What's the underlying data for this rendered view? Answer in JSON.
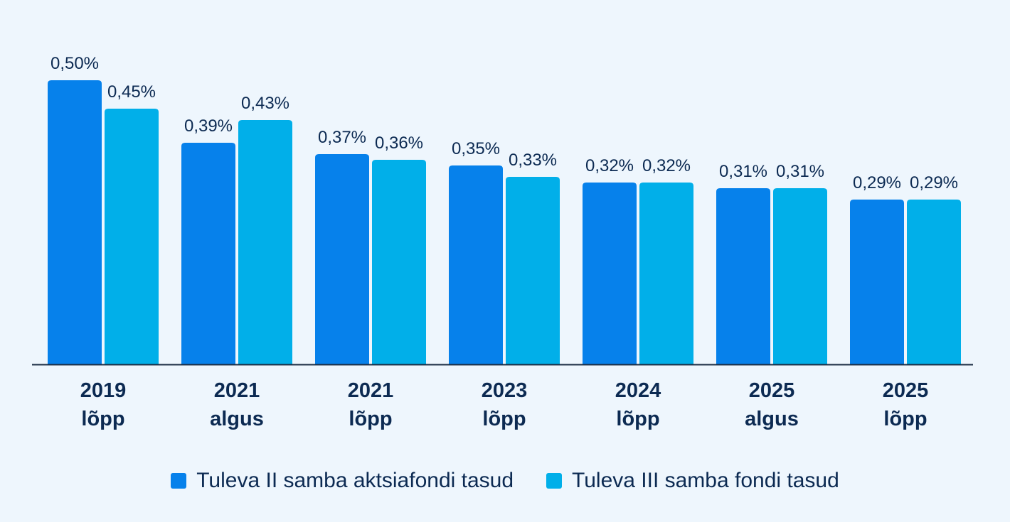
{
  "chart_data": {
    "type": "bar",
    "title": "",
    "xlabel": "",
    "ylabel": "",
    "ylim": [
      0,
      0.5
    ],
    "categories": [
      [
        "2019",
        "lõpp"
      ],
      [
        "2021",
        "algus"
      ],
      [
        "2021",
        "lõpp"
      ],
      [
        "2023",
        "lõpp"
      ],
      [
        "2024",
        "lõpp"
      ],
      [
        "2025",
        "algus"
      ],
      [
        "2025",
        "lõpp"
      ]
    ],
    "series": [
      {
        "name": "Tuleva II samba aktsiafondi tasud",
        "color": "#0681eb",
        "values": [
          0.5,
          0.39,
          0.37,
          0.35,
          0.32,
          0.31,
          0.29
        ],
        "labels": [
          "0,50%",
          "0,39%",
          "0,37%",
          "0,35%",
          "0,32%",
          "0,31%",
          "0,29%"
        ]
      },
      {
        "name": "Tuleva III samba fondi tasud",
        "color": "#01afe9",
        "values": [
          0.45,
          0.43,
          0.36,
          0.33,
          0.32,
          0.31,
          0.29
        ],
        "labels": [
          "0,45%",
          "0,43%",
          "0,36%",
          "0,33%",
          "0,32%",
          "0,31%",
          "0,29%"
        ]
      }
    ],
    "legend_position": "bottom-center",
    "grid": false
  },
  "legend": {
    "series_1": "Tuleva II samba aktsiafondi tasud",
    "series_2": "Tuleva III samba fondi tasud"
  }
}
